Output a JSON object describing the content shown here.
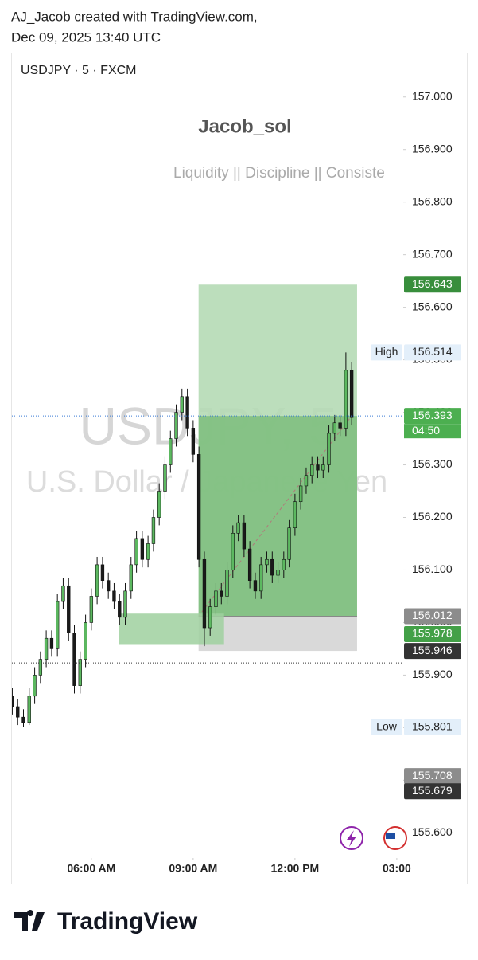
{
  "header": {
    "line1": "AJ_Jacob created with TradingView.com,",
    "line2": "Dec 09, 2025 13:40 UTC"
  },
  "chart_data": {
    "type": "candlestick",
    "symbol": "USDJPY · 5 · FXCM",
    "title": "Jacob_sol",
    "subtitle": "Liquidity || Discipline || Consiste",
    "watermark": "USDJPY, 5",
    "watermark_sub": "U.S. Dollar / Japanese Yen",
    "up_color": "#5cb860",
    "down_color": "#1a1a1a",
    "wick_color": "#111111",
    "x": [
      3.67,
      3.83,
      4,
      4.17,
      4.33,
      4.5,
      4.67,
      4.83,
      5,
      5.17,
      5.33,
      5.5,
      5.67,
      5.83,
      6,
      6.17,
      6.33,
      6.5,
      6.67,
      6.83,
      7,
      7.17,
      7.33,
      7.5,
      7.67,
      7.83,
      8,
      8.17,
      8.33,
      8.5,
      8.67,
      8.83,
      9,
      9.17,
      9.33,
      9.5,
      9.67,
      9.83,
      10,
      10.17,
      10.33,
      10.5,
      10.67,
      10.83,
      11,
      11.17,
      11.33,
      11.5,
      11.67,
      11.83,
      12,
      12.17,
      12.33,
      12.5,
      12.67,
      12.83,
      13,
      13.17,
      13.33,
      13.5,
      13.67
    ],
    "open": [
      155.86,
      155.84,
      155.82,
      155.81,
      155.86,
      155.9,
      155.93,
      155.97,
      155.95,
      156.04,
      156.07,
      155.98,
      155.88,
      155.93,
      156,
      156.05,
      156.11,
      156.08,
      156.06,
      156.04,
      156.01,
      156.06,
      156.11,
      156.16,
      156.12,
      156.15,
      156.2,
      156.25,
      156.3,
      156.35,
      156.4,
      156.43,
      156.37,
      156.32,
      156.12,
      155.99,
      156.03,
      156.06,
      156.05,
      156.1,
      156.17,
      156.19,
      156.14,
      156.08,
      156.06,
      156.11,
      156.12,
      156.09,
      156.1,
      156.12,
      156.18,
      156.23,
      156.26,
      156.28,
      156.3,
      156.29,
      156.3,
      156.36,
      156.38,
      156.37,
      156.48
    ],
    "high": [
      155.875,
      155.855,
      155.835,
      155.875,
      155.915,
      155.945,
      155.985,
      155.985,
      156.055,
      156.085,
      156.085,
      155.995,
      155.945,
      156.015,
      156.065,
      156.125,
      156.125,
      156.095,
      156.075,
      156.055,
      156.075,
      156.125,
      156.175,
      156.175,
      156.165,
      156.215,
      156.265,
      156.315,
      156.365,
      156.415,
      156.445,
      156.445,
      156.385,
      156.335,
      156.135,
      156.045,
      156.075,
      156.075,
      156.115,
      156.185,
      156.205,
      156.205,
      156.155,
      156.095,
      156.125,
      156.135,
      156.135,
      156.115,
      156.135,
      156.195,
      156.245,
      156.275,
      156.295,
      156.315,
      156.315,
      156.315,
      156.375,
      156.395,
      156.395,
      156.514,
      156.495
    ],
    "low": [
      155.825,
      155.805,
      155.801,
      155.805,
      155.845,
      155.885,
      155.915,
      155.935,
      155.935,
      156.025,
      155.965,
      155.865,
      155.865,
      155.915,
      155.985,
      156.035,
      156.065,
      156.045,
      156.025,
      155.995,
      155.995,
      156.045,
      156.095,
      156.105,
      156.105,
      156.135,
      156.185,
      156.235,
      156.285,
      156.335,
      156.385,
      156.355,
      156.305,
      156.105,
      155.955,
      155.975,
      156.015,
      156.035,
      156.035,
      156.085,
      156.155,
      156.125,
      156.065,
      156.045,
      156.045,
      156.095,
      156.075,
      156.075,
      156.085,
      156.105,
      156.165,
      156.215,
      156.245,
      156.265,
      156.275,
      156.275,
      156.285,
      156.345,
      156.355,
      156.355,
      156.375
    ],
    "close": [
      155.84,
      155.82,
      155.81,
      155.86,
      155.9,
      155.93,
      155.97,
      155.95,
      156.04,
      156.07,
      155.98,
      155.88,
      155.93,
      156,
      156.05,
      156.11,
      156.08,
      156.06,
      156.04,
      156.01,
      156.06,
      156.11,
      156.16,
      156.12,
      156.15,
      156.2,
      156.25,
      156.3,
      156.35,
      156.4,
      156.43,
      156.37,
      156.32,
      156.12,
      155.99,
      156.03,
      156.06,
      156.05,
      156.1,
      156.17,
      156.19,
      156.14,
      156.08,
      156.06,
      156.11,
      156.12,
      156.09,
      156.1,
      156.12,
      156.18,
      156.23,
      156.26,
      156.28,
      156.3,
      156.29,
      156.3,
      156.36,
      156.38,
      156.37,
      156.48,
      156.39
    ],
    "xlim": [
      3.66,
      15.19
    ],
    "ylim": [
      155.555,
      157.083
    ],
    "xticks": [
      {
        "value": 6,
        "label": "06:00 AM"
      },
      {
        "value": 9,
        "label": "09:00 AM"
      },
      {
        "value": 12,
        "label": "12:00 PM"
      },
      {
        "value": 15,
        "label": "03:00"
      }
    ],
    "yticks": [
      {
        "value": 155.6,
        "label": "155.600"
      },
      {
        "value": 155.7,
        "label": "155.700"
      },
      {
        "value": 155.8,
        "label": "155.800"
      },
      {
        "value": 155.9,
        "label": "155.900"
      },
      {
        "value": 156.0,
        "label": "156.000"
      },
      {
        "value": 156.1,
        "label": "156.100"
      },
      {
        "value": 156.2,
        "label": "156.200"
      },
      {
        "value": 156.3,
        "label": "156.300"
      },
      {
        "value": 156.4,
        "label": "156.400"
      },
      {
        "value": 156.5,
        "label": "156.500"
      },
      {
        "value": 156.6,
        "label": "156.600"
      },
      {
        "value": 156.7,
        "label": "156.700"
      },
      {
        "value": 156.8,
        "label": "156.800"
      },
      {
        "value": 156.9,
        "label": "156.900"
      },
      {
        "value": 157.0,
        "label": "157.000"
      }
    ],
    "position": {
      "start": 9.16,
      "end": 13.83,
      "entry": 156.012,
      "target": 156.643,
      "stop": 155.946,
      "current": 156.393,
      "profit_color": "#7fbf7f",
      "target_color": "#b5dab5",
      "stop_color": "#d9d9d9"
    },
    "zone": {
      "start": 6.82,
      "end": 9.91,
      "low": 155.959,
      "high": 156.017,
      "color": "#9fd09f"
    },
    "price_labels": [
      {
        "value": 156.643,
        "color": "#388e3c"
      },
      {
        "value": 156.514,
        "tag": "High",
        "color": "#e3effa"
      },
      {
        "value": 156.393,
        "countdown": "04:50",
        "color": "#4caf50"
      },
      {
        "value": 156.012,
        "color": "#8c8c8c"
      },
      {
        "value": 155.978,
        "color": "#43a047"
      },
      {
        "value": 155.946,
        "color": "#333333"
      },
      {
        "value": 155.801,
        "tag": "Low",
        "color": "#e3effa"
      },
      {
        "value": 155.708,
        "color": "#8c8c8c"
      },
      {
        "value": 155.679,
        "color": "#333333"
      }
    ]
  },
  "footer": {
    "brand": "TradingView"
  }
}
